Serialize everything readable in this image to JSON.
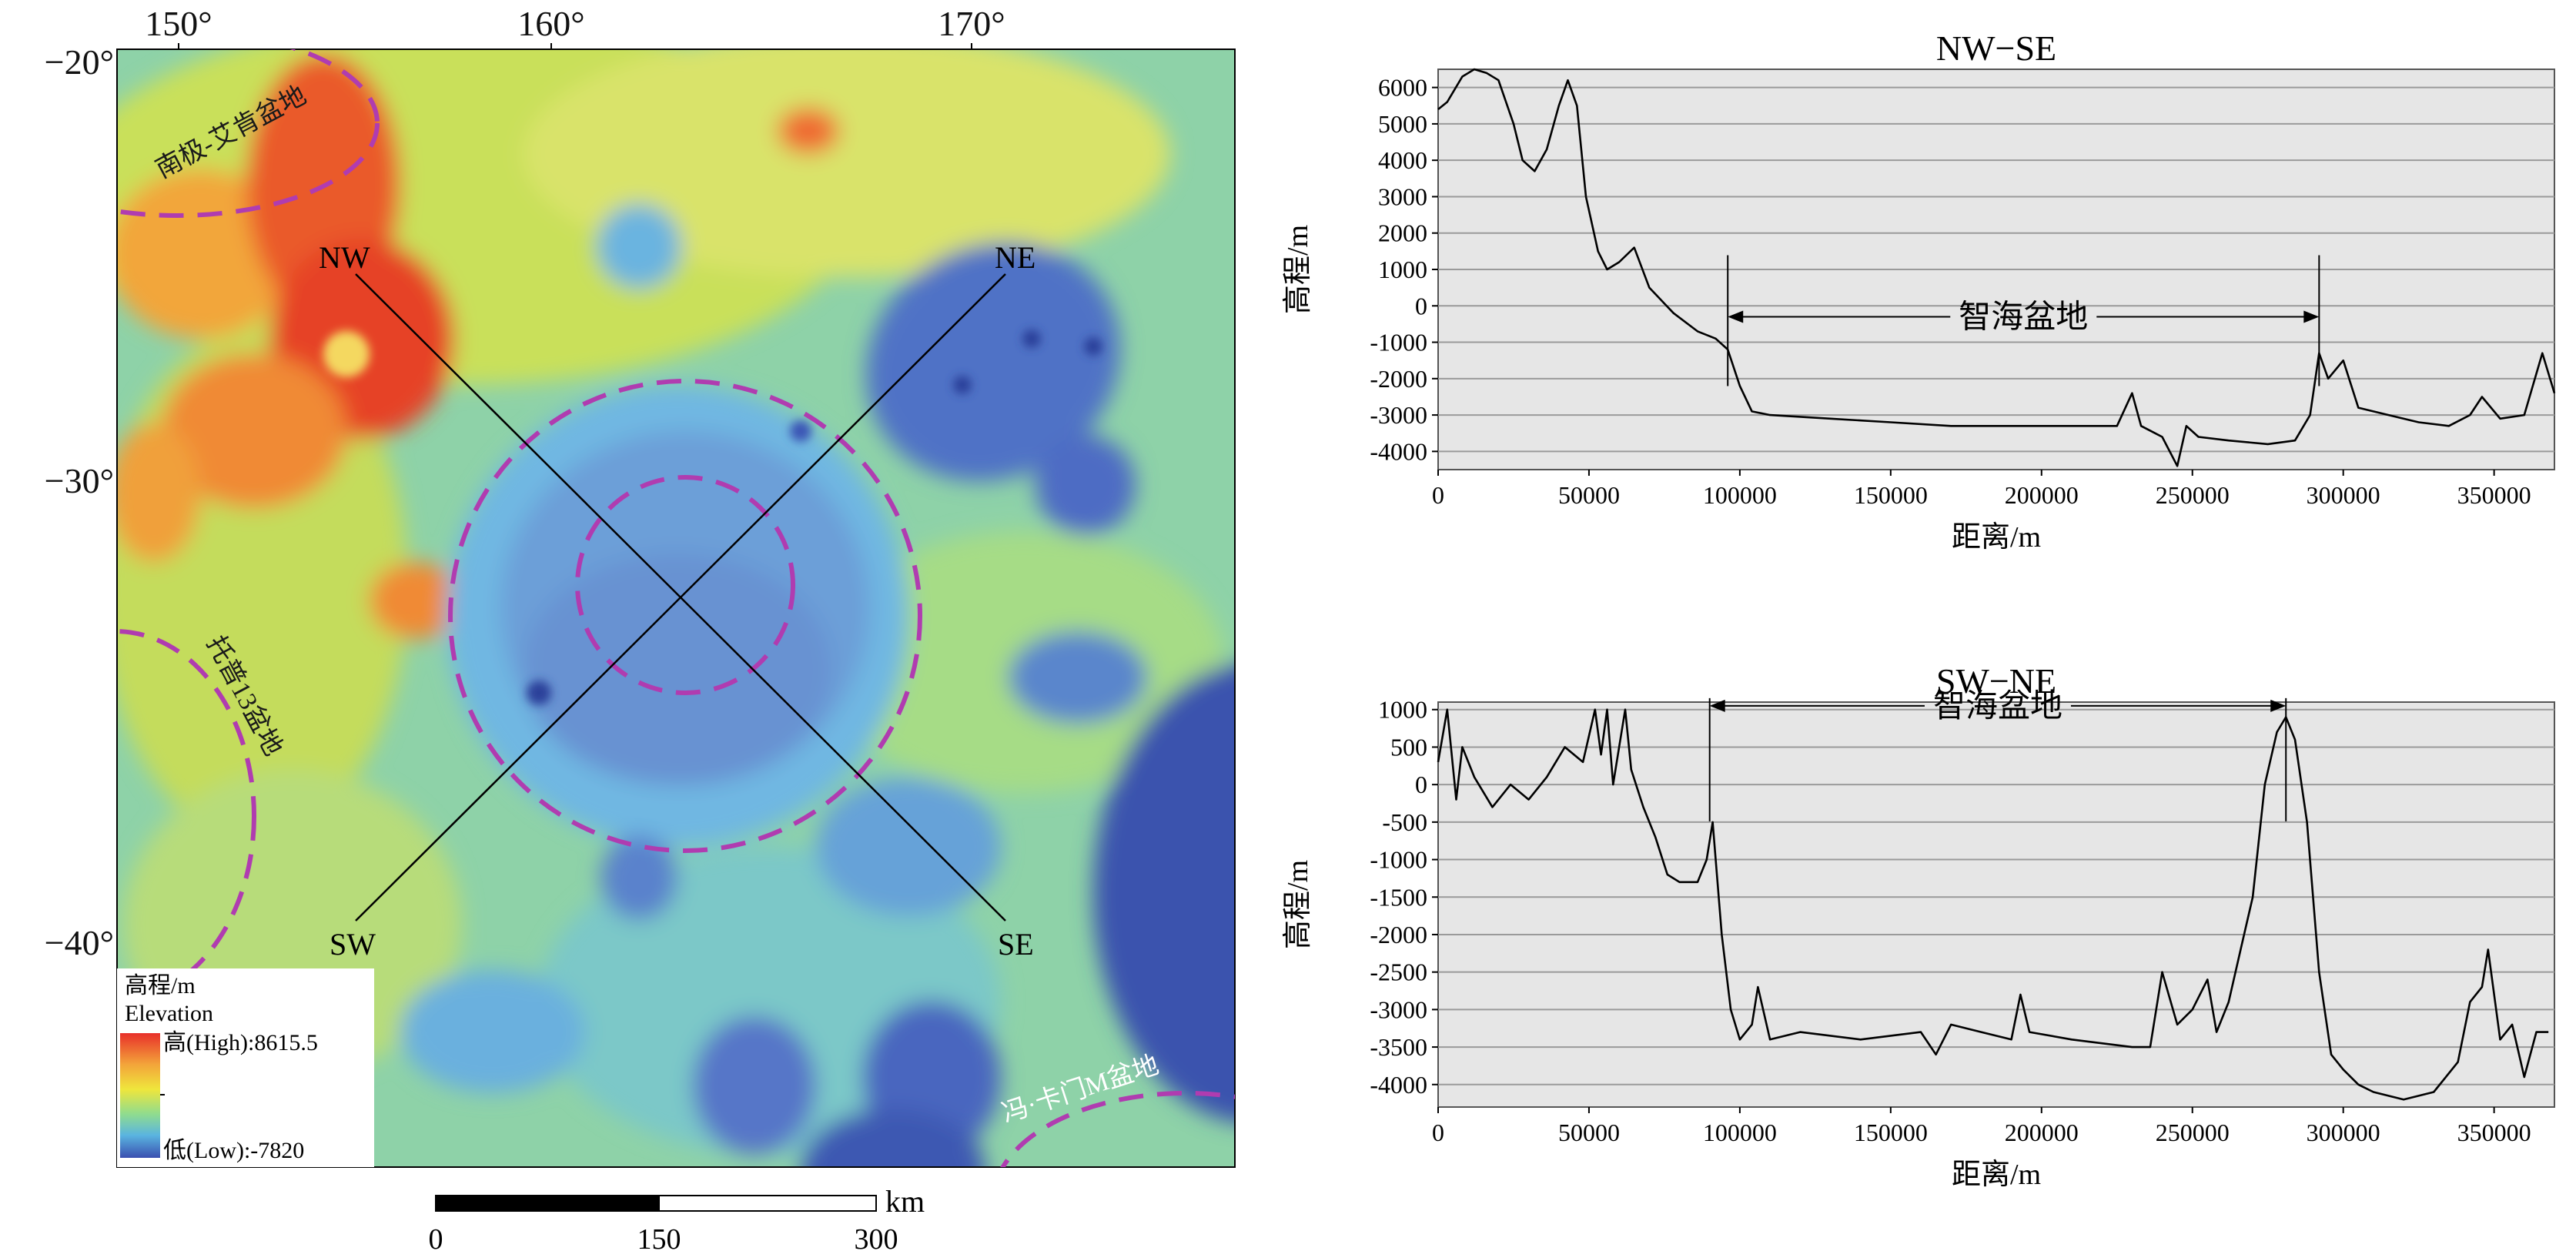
{
  "map": {
    "lon_labels": [
      "150°",
      "160°",
      "170°"
    ],
    "lat_labels": [
      "−20°",
      "−30°",
      "−40°"
    ],
    "profile_endpoints": [
      "NW",
      "SE",
      "NE",
      "SW"
    ],
    "basin_labels": {
      "south_pole_aitken": "南极-艾肯盆地",
      "tp13": "托普13盆地",
      "von_karman_m": "冯·卡门M盆地"
    },
    "legend": {
      "title_cn": "高程/m",
      "title_en": "Elevation",
      "high": "高(High):8615.5",
      "low": "低(Low):-7820"
    },
    "scale_bar": {
      "unit": "km",
      "ticks": [
        "0",
        "150",
        "300"
      ]
    },
    "colors": {
      "high": "#e03020",
      "mid": "#f0e030",
      "low": "#3a55b5",
      "basin_ring": "#b03cb0"
    }
  },
  "chart_data": [
    {
      "type": "line",
      "title": "NW−SE",
      "xlabel": "距离/m",
      "ylabel": "高程/m",
      "xlim": [
        0,
        370000
      ],
      "ylim": [
        -4500,
        6500
      ],
      "xticks": [
        0,
        50000,
        100000,
        150000,
        200000,
        250000,
        300000,
        350000
      ],
      "yticks": [
        -4000,
        -3000,
        -2000,
        -1000,
        0,
        1000,
        2000,
        3000,
        4000,
        5000,
        6000
      ],
      "grid": true,
      "annotation": {
        "label": "智海盆地",
        "x_start": 96000,
        "x_end": 292000,
        "y": -300
      },
      "series": [
        {
          "x": [
            0,
            3000,
            8000,
            12000,
            16000,
            20000,
            25000,
            28000,
            32000,
            36000,
            40000,
            43000,
            46000,
            49000,
            53000,
            56000,
            60000,
            65000,
            70000,
            78000,
            86000,
            92000,
            96000,
            100000,
            104000,
            110000,
            130000,
            150000,
            170000,
            190000,
            210000,
            225000,
            230000,
            233000,
            240000,
            245000,
            248000,
            252000,
            262000,
            275000,
            284000,
            289000,
            292000,
            295000,
            300000,
            305000,
            315000,
            325000,
            335000,
            342000,
            346000,
            352000,
            360000,
            366000,
            370000
          ],
          "y": [
            5400,
            5600,
            6300,
            6500,
            6400,
            6200,
            5000,
            4000,
            3700,
            4300,
            5500,
            6200,
            5500,
            3000,
            1500,
            1000,
            1200,
            1600,
            500,
            -200,
            -700,
            -900,
            -1200,
            -2200,
            -2900,
            -3000,
            -3100,
            -3200,
            -3300,
            -3300,
            -3300,
            -3300,
            -2400,
            -3300,
            -3600,
            -4400,
            -3300,
            -3600,
            -3700,
            -3800,
            -3700,
            -3000,
            -1300,
            -2000,
            -1500,
            -2800,
            -3000,
            -3200,
            -3300,
            -3000,
            -2500,
            -3100,
            -3000,
            -1300,
            -2400
          ]
        }
      ]
    },
    {
      "type": "line",
      "title": "SW−NE",
      "xlabel": "距离/m",
      "ylabel": "高程/m",
      "xlim": [
        0,
        370000
      ],
      "ylim": [
        -4300,
        1100
      ],
      "xticks": [
        0,
        50000,
        100000,
        150000,
        200000,
        250000,
        300000,
        350000
      ],
      "yticks": [
        -4000,
        -3500,
        -3000,
        -2500,
        -2000,
        -1500,
        -1000,
        -500,
        0,
        500,
        1000
      ],
      "grid": true,
      "annotation": {
        "label": "智海盆地",
        "x_start": 90000,
        "x_end": 281000,
        "y": 1050
      },
      "series": [
        {
          "x": [
            0,
            3000,
            6000,
            8000,
            12000,
            18000,
            24000,
            30000,
            36000,
            42000,
            48000,
            52000,
            54000,
            56000,
            58000,
            60000,
            62000,
            64000,
            68000,
            72000,
            76000,
            80000,
            86000,
            89000,
            91000,
            94000,
            97000,
            100000,
            104000,
            106000,
            110000,
            120000,
            140000,
            160000,
            165000,
            170000,
            180000,
            190000,
            193000,
            196000,
            210000,
            230000,
            236000,
            240000,
            245000,
            250000,
            255000,
            258000,
            262000,
            266000,
            270000,
            274000,
            278000,
            281000,
            284000,
            288000,
            292000,
            296000,
            300000,
            305000,
            310000,
            320000,
            330000,
            338000,
            342000,
            346000,
            348000,
            352000,
            356000,
            360000,
            364000,
            368000
          ],
          "y": [
            300,
            1000,
            -200,
            500,
            100,
            -300,
            0,
            -200,
            100,
            500,
            300,
            1000,
            400,
            1000,
            0,
            500,
            1000,
            200,
            -300,
            -700,
            -1200,
            -1300,
            -1300,
            -1000,
            -500,
            -2000,
            -3000,
            -3400,
            -3200,
            -2700,
            -3400,
            -3300,
            -3400,
            -3300,
            -3600,
            -3200,
            -3300,
            -3400,
            -2800,
            -3300,
            -3400,
            -3500,
            -3500,
            -2500,
            -3200,
            -3000,
            -2600,
            -3300,
            -2900,
            -2200,
            -1500,
            0,
            700,
            900,
            600,
            -500,
            -2500,
            -3600,
            -3800,
            -4000,
            -4100,
            -4200,
            -4100,
            -3700,
            -2900,
            -2700,
            -2200,
            -3400,
            -3200,
            -3900,
            -3300,
            -3300
          ]
        }
      ]
    }
  ]
}
